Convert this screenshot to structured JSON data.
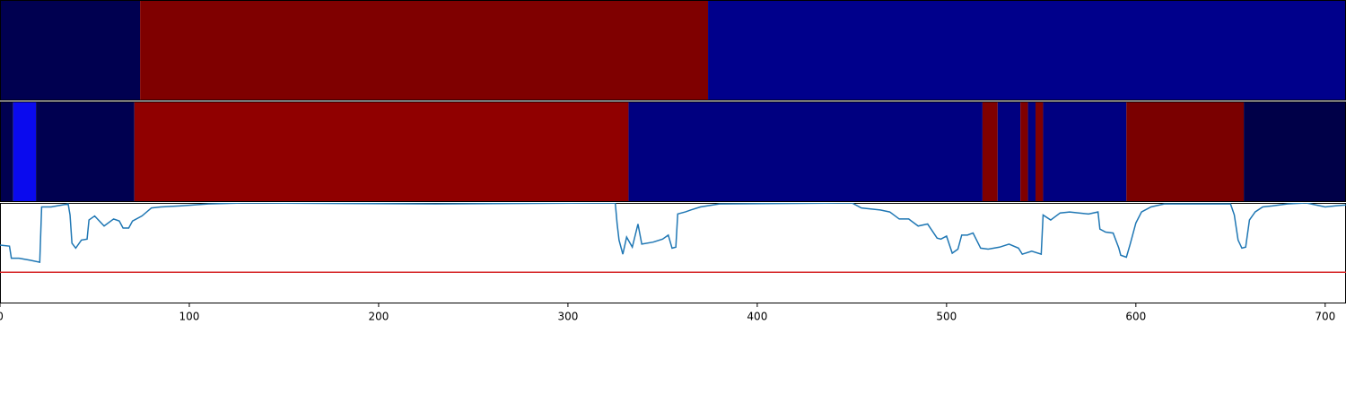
{
  "chart_data": [
    {
      "type": "segments",
      "xlim": [
        0,
        711
      ],
      "segments": [
        {
          "start": 0,
          "end": 74,
          "color": "#000050"
        },
        {
          "start": 74,
          "end": 374,
          "color": "#7f0000"
        },
        {
          "start": 374,
          "end": 711,
          "color": "#00008b"
        }
      ]
    },
    {
      "type": "segments",
      "xlim": [
        0,
        711
      ],
      "segments": [
        {
          "start": 0,
          "end": 7,
          "color": "#000050"
        },
        {
          "start": 7,
          "end": 19,
          "color": "#0a0aee"
        },
        {
          "start": 19,
          "end": 71,
          "color": "#000050"
        },
        {
          "start": 71,
          "end": 332,
          "color": "#900000"
        },
        {
          "start": 332,
          "end": 519,
          "color": "#000080"
        },
        {
          "start": 519,
          "end": 527,
          "color": "#800000"
        },
        {
          "start": 527,
          "end": 539,
          "color": "#000080"
        },
        {
          "start": 539,
          "end": 543,
          "color": "#800000"
        },
        {
          "start": 543,
          "end": 547,
          "color": "#000080"
        },
        {
          "start": 547,
          "end": 551,
          "color": "#800000"
        },
        {
          "start": 551,
          "end": 595,
          "color": "#000080"
        },
        {
          "start": 595,
          "end": 657,
          "color": "#7a0000"
        },
        {
          "start": 657,
          "end": 711,
          "color": "#000048"
        }
      ]
    },
    {
      "type": "line",
      "xlim": [
        0,
        711
      ],
      "ylim": [
        0,
        1
      ],
      "xticks": [
        0,
        100,
        200,
        300,
        400,
        500,
        600,
        700
      ],
      "color": "#1f77b4",
      "threshold": 0.31,
      "threshold_color": "#d62728",
      "x": [
        0,
        5,
        6,
        10,
        16,
        21,
        22,
        27,
        36,
        37,
        38,
        40,
        43,
        46,
        47,
        50,
        55,
        60,
        63,
        65,
        68,
        70,
        75,
        80,
        85,
        95,
        110,
        130,
        230,
        325,
        326,
        327,
        329,
        331,
        334,
        337,
        339,
        345,
        350,
        353,
        355,
        357,
        358,
        362,
        365,
        370,
        380,
        450,
        455,
        465,
        470,
        475,
        480,
        485,
        490,
        495,
        497,
        500,
        503,
        506,
        508,
        511,
        514,
        518,
        522,
        528,
        533,
        538,
        540,
        545,
        550,
        551,
        555,
        560,
        565,
        575,
        580,
        581,
        584,
        588,
        591,
        592,
        595,
        597,
        600,
        603,
        608,
        615,
        650,
        652,
        654,
        656,
        658,
        660,
        663,
        667,
        672,
        680,
        690,
        695,
        700,
        705,
        711
      ],
      "values": [
        0.58,
        0.57,
        0.45,
        0.45,
        0.43,
        0.41,
        0.96,
        0.96,
        0.99,
        0.88,
        0.6,
        0.55,
        0.63,
        0.64,
        0.83,
        0.87,
        0.77,
        0.84,
        0.82,
        0.75,
        0.75,
        0.82,
        0.87,
        0.95,
        0.96,
        0.97,
        0.99,
        1.0,
        0.99,
        1.0,
        0.79,
        0.63,
        0.49,
        0.66,
        0.56,
        0.79,
        0.59,
        0.61,
        0.64,
        0.68,
        0.55,
        0.56,
        0.89,
        0.91,
        0.93,
        0.96,
        0.99,
        1.0,
        0.95,
        0.93,
        0.91,
        0.84,
        0.84,
        0.77,
        0.79,
        0.65,
        0.64,
        0.67,
        0.5,
        0.54,
        0.68,
        0.68,
        0.7,
        0.55,
        0.54,
        0.56,
        0.59,
        0.55,
        0.49,
        0.52,
        0.49,
        0.88,
        0.83,
        0.9,
        0.91,
        0.89,
        0.91,
        0.74,
        0.71,
        0.7,
        0.55,
        0.48,
        0.46,
        0.59,
        0.8,
        0.91,
        0.96,
        0.99,
        0.99,
        0.88,
        0.63,
        0.55,
        0.56,
        0.83,
        0.91,
        0.96,
        0.97,
        0.99,
        1.0,
        0.98,
        0.96,
        0.97,
        0.98
      ]
    }
  ]
}
